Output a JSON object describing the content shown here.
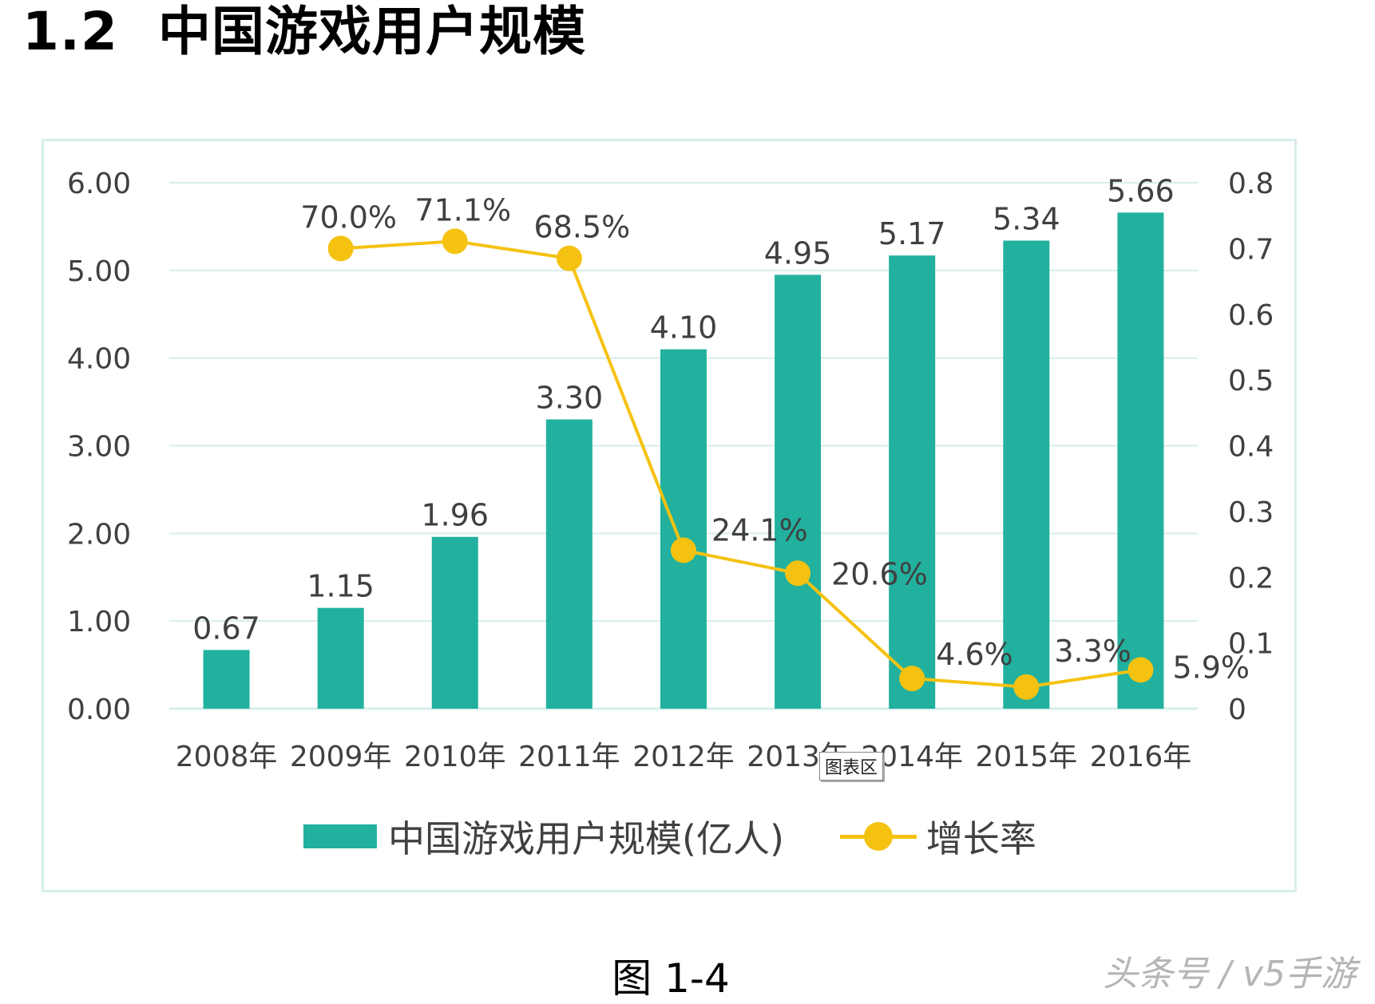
{
  "heading": {
    "number": "1.2",
    "title": "中国游戏用户规模"
  },
  "tooltip": "图表区",
  "caption": "图 1-4",
  "watermark": "头条号 / v5手游",
  "colors": {
    "bar": "#21b19e",
    "line": "#f5c211",
    "grid": "#d6eeeb"
  },
  "legend": {
    "bar_label": "中国游戏用户规模(亿人)",
    "line_label": "增长率"
  },
  "chart_data": {
    "type": "bar",
    "categories": [
      "2008年",
      "2009年",
      "2010年",
      "2011年",
      "2012年",
      "2013年",
      "2014年",
      "2015年",
      "2016年"
    ],
    "series": [
      {
        "name": "中国游戏用户规模(亿人)",
        "type": "bar",
        "axis": "left",
        "values": [
          0.67,
          1.15,
          1.96,
          3.3,
          4.1,
          4.95,
          5.17,
          5.34,
          5.66
        ],
        "labels": [
          "0.67",
          "1.15",
          "1.96",
          "3.30",
          "4.10",
          "4.95",
          "5.17",
          "5.34",
          "5.66"
        ]
      },
      {
        "name": "增长率",
        "type": "line",
        "axis": "right",
        "values": [
          null,
          0.7,
          0.711,
          0.685,
          0.241,
          0.206,
          0.046,
          0.033,
          0.059
        ],
        "labels": [
          null,
          "70.0%",
          "71.1%",
          "68.5%",
          "24.1%",
          "20.6%",
          "4.6%",
          "3.3%",
          "5.9%"
        ]
      }
    ],
    "y_left": {
      "range": [
        0,
        6
      ],
      "ticks": [
        "0.00",
        "1.00",
        "2.00",
        "3.00",
        "4.00",
        "5.00",
        "6.00"
      ]
    },
    "y_right": {
      "range": [
        0,
        0.8
      ],
      "ticks": [
        "0",
        "0.1",
        "0.2",
        "0.3",
        "0.4",
        "0.5",
        "0.6",
        "0.7",
        "0.8"
      ]
    },
    "grid": true,
    "legend_position": "bottom"
  }
}
